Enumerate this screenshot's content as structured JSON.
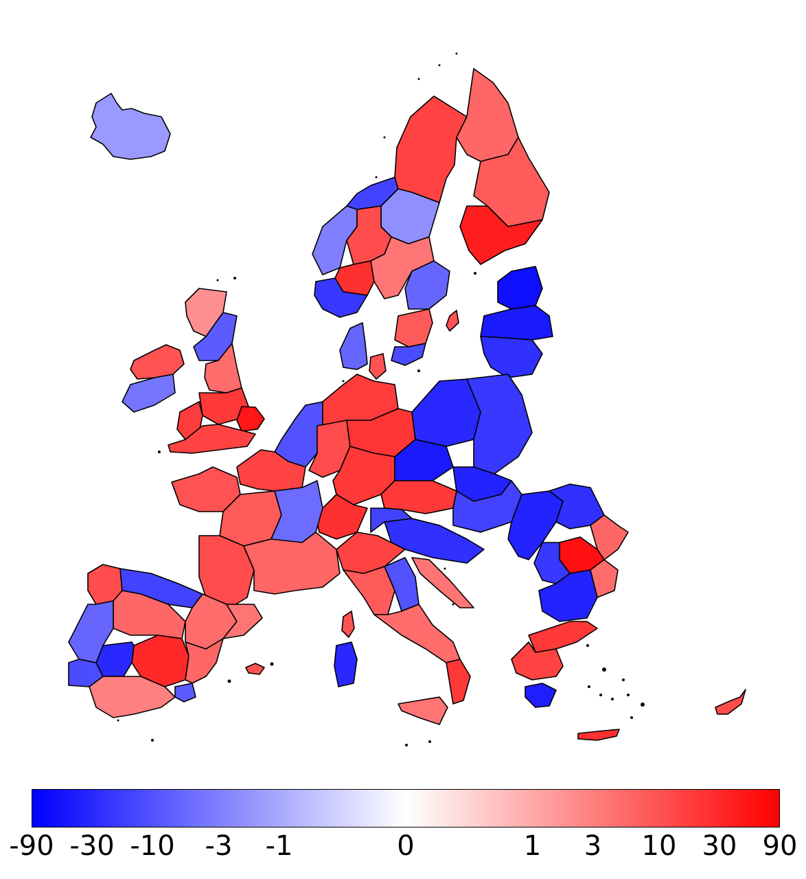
{
  "colorbar": {
    "colors": [
      "#0000ff",
      "#ffffff",
      "#ff0000"
    ],
    "ticks": [
      {
        "label": "-90",
        "value": -90
      },
      {
        "label": "-30",
        "value": -30
      },
      {
        "label": "-10",
        "value": -10
      },
      {
        "label": "-3",
        "value": -3
      },
      {
        "label": "-1",
        "value": -1
      },
      {
        "label": "0",
        "value": 0
      },
      {
        "label": "1",
        "value": 1
      },
      {
        "label": "3",
        "value": 3
      },
      {
        "label": "10",
        "value": 10
      },
      {
        "label": "30",
        "value": 30
      },
      {
        "label": "90",
        "value": 90
      }
    ]
  },
  "map": {
    "regions": [
      {
        "name": "iceland",
        "value": -1.5
      },
      {
        "name": "norway-north",
        "value": -15
      },
      {
        "name": "norway-central",
        "value": -2
      },
      {
        "name": "norway-west",
        "value": -3
      },
      {
        "name": "norway-inland",
        "value": 12
      },
      {
        "name": "norway-oslo",
        "value": 25
      },
      {
        "name": "norway-south",
        "value": -20
      },
      {
        "name": "sweden-north",
        "value": 15
      },
      {
        "name": "sweden-middle",
        "value": 4
      },
      {
        "name": "sweden-east",
        "value": -6
      },
      {
        "name": "sweden-south",
        "value": 8
      },
      {
        "name": "sweden-skane",
        "value": -12
      },
      {
        "name": "gotland",
        "value": 10
      },
      {
        "name": "finland-north",
        "value": 6
      },
      {
        "name": "finland-east",
        "value": 8
      },
      {
        "name": "finland-south",
        "value": 40
      },
      {
        "name": "estonia",
        "value": -60
      },
      {
        "name": "latvia",
        "value": -45
      },
      {
        "name": "lithuania",
        "value": -25
      },
      {
        "name": "denmark-jutland",
        "value": -6
      },
      {
        "name": "denmark-zealand",
        "value": 10
      },
      {
        "name": "ireland-north",
        "value": 10
      },
      {
        "name": "ireland-south",
        "value": -4
      },
      {
        "name": "scotland-north",
        "value": 2
      },
      {
        "name": "scotland-south",
        "value": -8
      },
      {
        "name": "england-north",
        "value": 5
      },
      {
        "name": "england-midlands",
        "value": 20
      },
      {
        "name": "england-east",
        "value": 50
      },
      {
        "name": "wales",
        "value": 18
      },
      {
        "name": "england-south",
        "value": 15
      },
      {
        "name": "benelux",
        "value": -10
      },
      {
        "name": "germany-north",
        "value": 18
      },
      {
        "name": "germany-west",
        "value": 12
      },
      {
        "name": "germany-south",
        "value": 20
      },
      {
        "name": "germany-east",
        "value": 22
      },
      {
        "name": "poland-west",
        "value": -30
      },
      {
        "name": "poland-east",
        "value": -20
      },
      {
        "name": "czechia",
        "value": -45
      },
      {
        "name": "slovakia",
        "value": -35
      },
      {
        "name": "austria",
        "value": 20
      },
      {
        "name": "switzerland",
        "value": 25
      },
      {
        "name": "hungary",
        "value": -15
      },
      {
        "name": "slovenia-croatia",
        "value": -25
      },
      {
        "name": "croatia-coast",
        "value": 4
      },
      {
        "name": "france-north",
        "value": 15
      },
      {
        "name": "france-brittany",
        "value": 10
      },
      {
        "name": "france-centre",
        "value": 8
      },
      {
        "name": "france-east",
        "value": -5
      },
      {
        "name": "france-southwest",
        "value": 12
      },
      {
        "name": "france-south",
        "value": 6
      },
      {
        "name": "corsica",
        "value": 10
      },
      {
        "name": "spain-galicia",
        "value": 12
      },
      {
        "name": "spain-north",
        "value": -15
      },
      {
        "name": "spain-ebro",
        "value": 5
      },
      {
        "name": "spain-castile",
        "value": 6
      },
      {
        "name": "spain-madrid",
        "value": 30
      },
      {
        "name": "spain-extremadura",
        "value": -30
      },
      {
        "name": "spain-andalusia",
        "value": 3
      },
      {
        "name": "spain-catalonia",
        "value": 4
      },
      {
        "name": "spain-valencia",
        "value": 6
      },
      {
        "name": "spain-murcia",
        "value": -8
      },
      {
        "name": "portugal-north",
        "value": -6
      },
      {
        "name": "portugal-south",
        "value": -12
      },
      {
        "name": "balearics",
        "value": 10
      },
      {
        "name": "italy-north",
        "value": 15
      },
      {
        "name": "italy-northeast",
        "value": -15
      },
      {
        "name": "italy-centre",
        "value": 8
      },
      {
        "name": "italy-south",
        "value": 5
      },
      {
        "name": "italy-adriatic",
        "value": -10
      },
      {
        "name": "calabria",
        "value": 20
      },
      {
        "name": "sicily",
        "value": 4
      },
      {
        "name": "sardinia",
        "value": -30
      },
      {
        "name": "romania-west",
        "value": -35
      },
      {
        "name": "romania-north",
        "value": -25
      },
      {
        "name": "romania-east",
        "value": 6
      },
      {
        "name": "romania-bucharest",
        "value": 60
      },
      {
        "name": "bulgaria-north",
        "value": -20
      },
      {
        "name": "bulgaria-south",
        "value": -35
      },
      {
        "name": "bulgaria-east",
        "value": 5
      },
      {
        "name": "greece-north",
        "value": 20
      },
      {
        "name": "greece-central",
        "value": 15
      },
      {
        "name": "greece-peloponnese",
        "value": -40
      },
      {
        "name": "crete",
        "value": 25
      },
      {
        "name": "cyprus",
        "value": 12
      }
    ]
  }
}
